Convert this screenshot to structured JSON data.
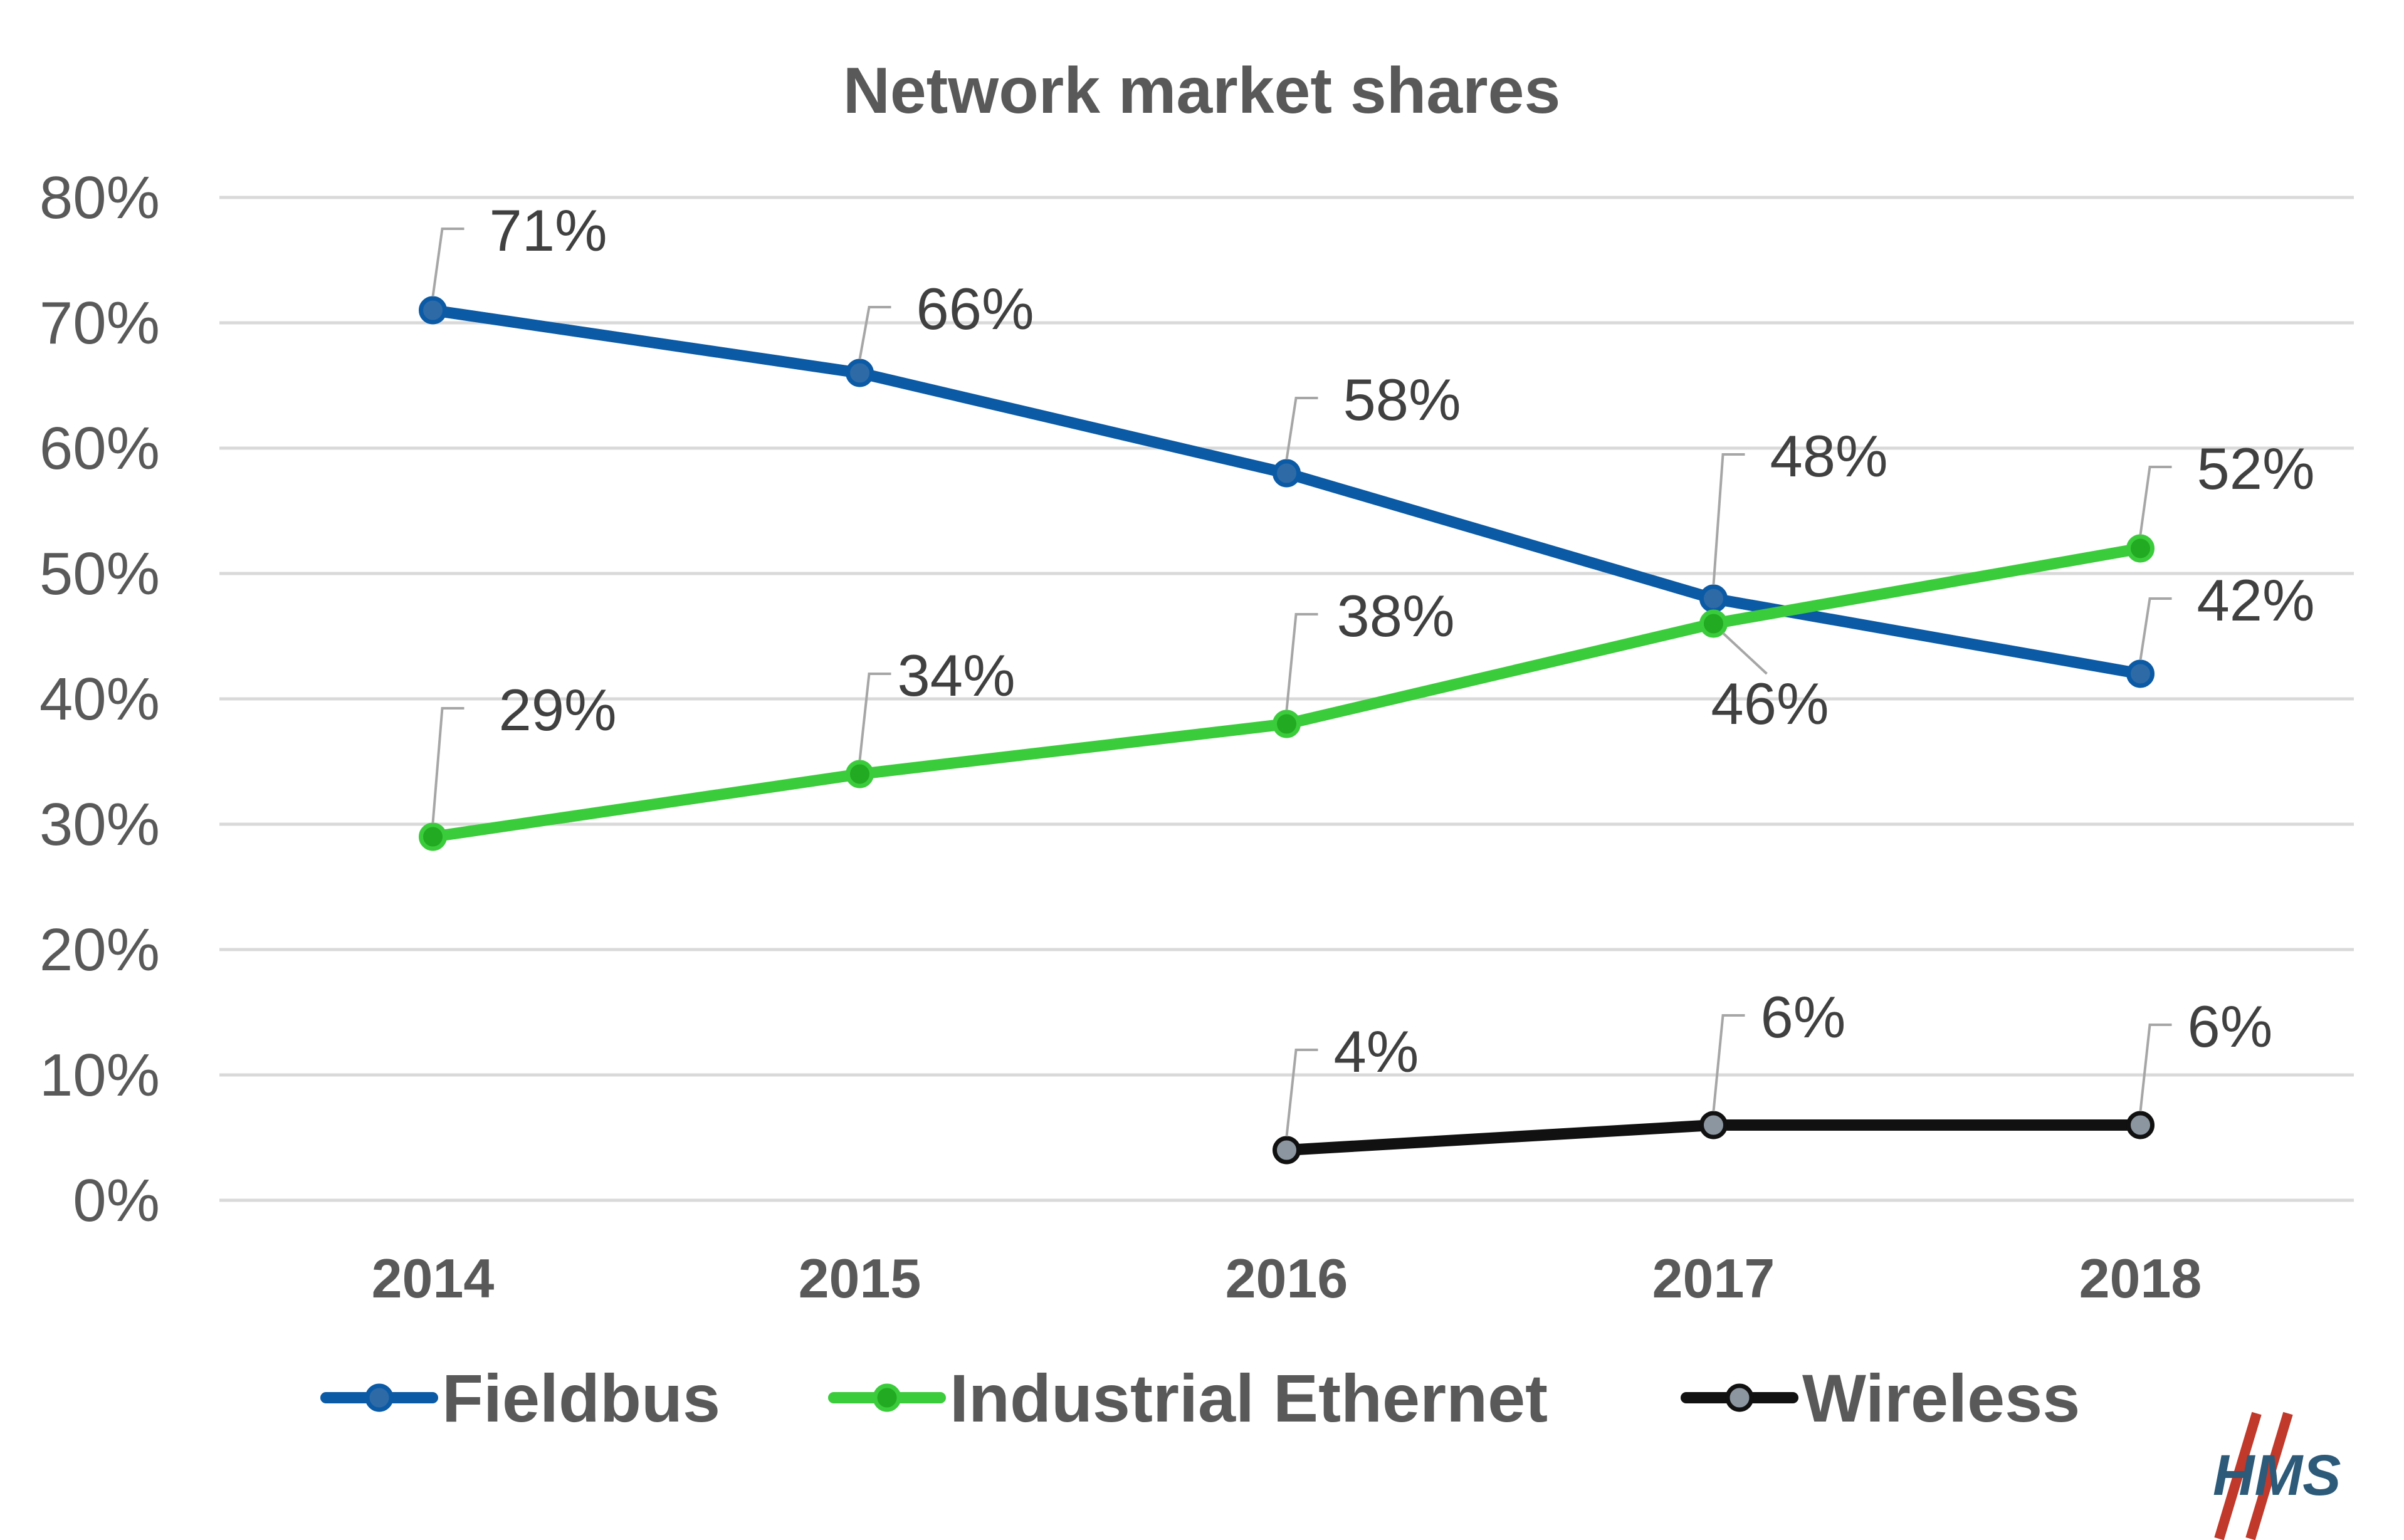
{
  "chart_data": {
    "type": "line",
    "title": "Network market shares",
    "categories": [
      "2014",
      "2015",
      "2016",
      "2017",
      "2018"
    ],
    "ylim": [
      0,
      80
    ],
    "yticks": [
      "0%",
      "10%",
      "20%",
      "30%",
      "40%",
      "50%",
      "60%",
      "70%",
      "80%"
    ],
    "grid": true,
    "legend_position": "bottom",
    "series": [
      {
        "name": "Fieldbus",
        "color": "#0b5aa6",
        "marker_color": "#2e6aa6",
        "values": [
          71,
          66,
          58,
          48,
          42
        ],
        "labels": [
          "71%",
          "66%",
          "58%",
          "48%",
          "42%"
        ]
      },
      {
        "name": "Industrial Ethernet",
        "color": "#3acc3a",
        "marker_color": "#22aa22",
        "values": [
          29,
          34,
          38,
          46,
          52
        ],
        "labels": [
          "29%",
          "34%",
          "38%",
          "46%",
          "52%"
        ]
      },
      {
        "name": "Wireless",
        "color": "#111111",
        "marker_color": "#8c96a0",
        "values": [
          null,
          null,
          4,
          6,
          6
        ],
        "labels": [
          null,
          null,
          "4%",
          "6%",
          "6%"
        ]
      }
    ]
  },
  "logo": {
    "text": "HMS",
    "color": "#2c5a78",
    "accent": "#c0392b"
  }
}
